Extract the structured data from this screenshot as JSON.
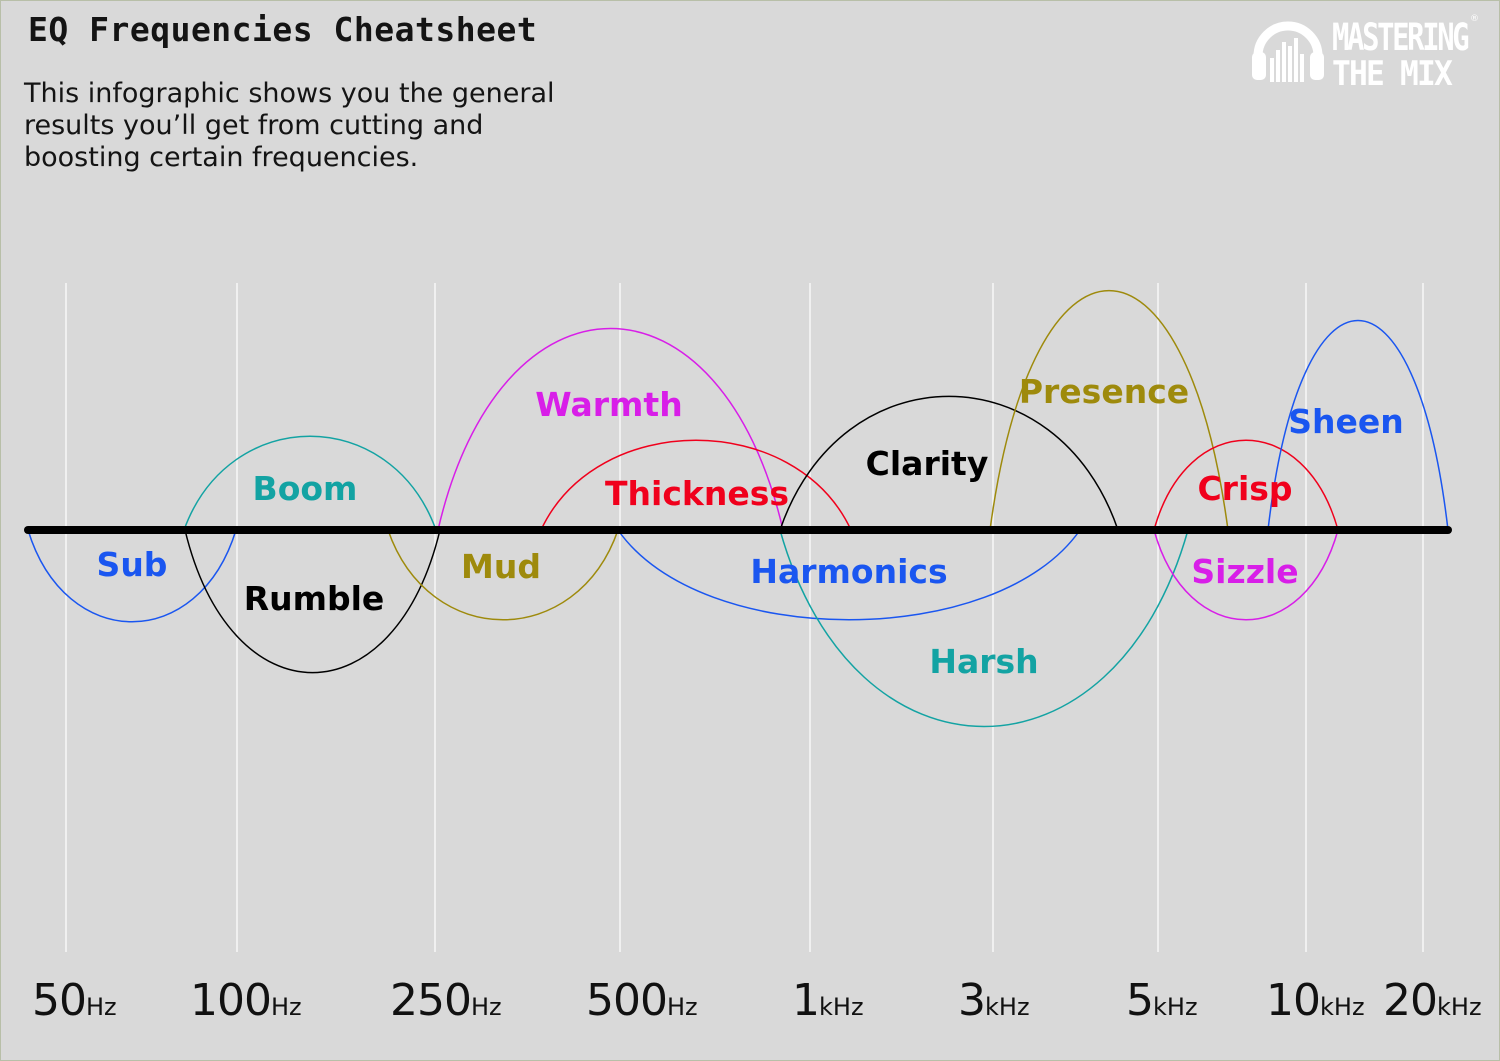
{
  "title": "EQ Frequencies Cheatsheet",
  "intro": "This infographic shows you the general\nresults you’ll get from cutting and\nboosting certain frequencies.",
  "logo": {
    "line1": "MASTERING",
    "line2": "THE MIX",
    "mark": "®"
  },
  "axis_ticks": [
    {
      "value": "50",
      "unit": "Hz"
    },
    {
      "value": "100",
      "unit": "Hz"
    },
    {
      "value": "250",
      "unit": "Hz"
    },
    {
      "value": "500",
      "unit": "Hz"
    },
    {
      "value": "1",
      "unit": "kHz"
    },
    {
      "value": "3",
      "unit": "kHz"
    },
    {
      "value": "5",
      "unit": "kHz"
    },
    {
      "value": "10",
      "unit": "kHz"
    },
    {
      "value": "20",
      "unit": "kHz"
    }
  ],
  "colors": {
    "background": "#d9d9d9",
    "baseline": "#000000",
    "gridline": "#ffffff",
    "blue": "#1a56f0",
    "teal": "#13a3a3",
    "black": "#000000",
    "olive": "#9e8a0c",
    "magenta": "#d81ee8",
    "red": "#f0001c"
  },
  "bands": [
    {
      "name": "Sub",
      "direction": "cut",
      "color": "blue"
    },
    {
      "name": "Boom",
      "direction": "boost",
      "color": "teal"
    },
    {
      "name": "Rumble",
      "direction": "cut",
      "color": "black"
    },
    {
      "name": "Mud",
      "direction": "cut",
      "color": "olive"
    },
    {
      "name": "Warmth",
      "direction": "boost",
      "color": "magenta"
    },
    {
      "name": "Thickness",
      "direction": "boost",
      "color": "red"
    },
    {
      "name": "Harmonics",
      "direction": "cut",
      "color": "blue"
    },
    {
      "name": "Clarity",
      "direction": "boost",
      "color": "black"
    },
    {
      "name": "Harsh",
      "direction": "cut",
      "color": "teal"
    },
    {
      "name": "Presence",
      "direction": "boost",
      "color": "olive"
    },
    {
      "name": "Crisp",
      "direction": "boost",
      "color": "red"
    },
    {
      "name": "Sizzle",
      "direction": "cut",
      "color": "magenta"
    },
    {
      "name": "Sheen",
      "direction": "boost",
      "color": "blue"
    }
  ]
}
